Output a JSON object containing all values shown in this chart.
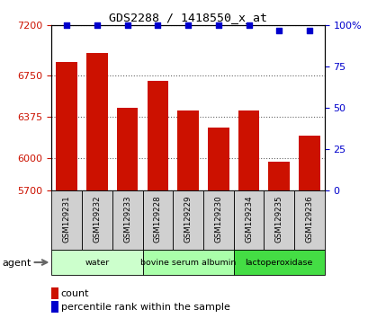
{
  "title": "GDS2288 / 1418550_x_at",
  "samples": [
    "GSM129231",
    "GSM129232",
    "GSM129233",
    "GSM129228",
    "GSM129229",
    "GSM129230",
    "GSM129234",
    "GSM129235",
    "GSM129236"
  ],
  "counts": [
    6870,
    6950,
    6450,
    6700,
    6430,
    6270,
    6430,
    5960,
    6200
  ],
  "percentiles": [
    100,
    100,
    100,
    100,
    100,
    100,
    100,
    97,
    97
  ],
  "bar_color": "#cc1100",
  "dot_color": "#0000cc",
  "ylim_left": [
    5700,
    7200
  ],
  "ylim_right": [
    0,
    100
  ],
  "yticks_left": [
    5700,
    6000,
    6375,
    6750,
    7200
  ],
  "yticks_right": [
    0,
    25,
    50,
    75,
    100
  ],
  "groups": [
    {
      "label": "water",
      "start": 0,
      "end": 2,
      "color": "#ccffcc"
    },
    {
      "label": "bovine serum albumin",
      "start": 3,
      "end": 5,
      "color": "#aaffaa"
    },
    {
      "label": "lactoperoxidase",
      "start": 6,
      "end": 8,
      "color": "#44dd44"
    }
  ],
  "agent_label": "agent",
  "legend_count_label": "count",
  "legend_percentile_label": "percentile rank within the sample",
  "background_color": "#ffffff",
  "grid_color": "#666666",
  "sample_bg": "#d0d0d0",
  "sample_edge": "#888888"
}
